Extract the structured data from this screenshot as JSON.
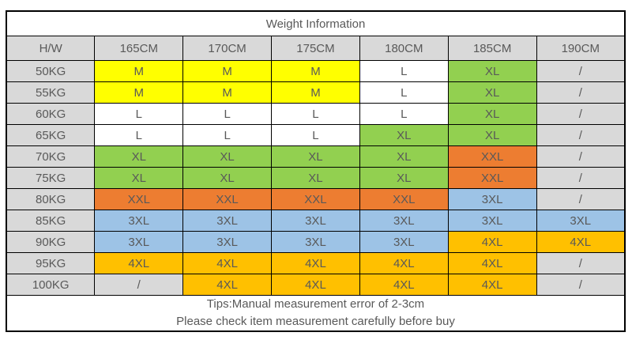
{
  "chart_data": {
    "type": "table",
    "title": "Weight Information",
    "columns": [
      "H/W",
      "165CM",
      "170CM",
      "175CM",
      "180CM",
      "185CM",
      "190CM"
    ],
    "rows": [
      {
        "weight": "50KG",
        "cells": [
          {
            "text": "M",
            "color": "yellow"
          },
          {
            "text": "M",
            "color": "yellow"
          },
          {
            "text": "M",
            "color": "yellow"
          },
          {
            "text": "L",
            "color": "white"
          },
          {
            "text": "XL",
            "color": "green"
          },
          {
            "text": "/",
            "color": "grey"
          }
        ]
      },
      {
        "weight": "55KG",
        "cells": [
          {
            "text": "M",
            "color": "yellow"
          },
          {
            "text": "M",
            "color": "yellow"
          },
          {
            "text": "M",
            "color": "yellow"
          },
          {
            "text": "L",
            "color": "white"
          },
          {
            "text": "XL",
            "color": "green"
          },
          {
            "text": "/",
            "color": "grey"
          }
        ]
      },
      {
        "weight": "60KG",
        "cells": [
          {
            "text": "L",
            "color": "white"
          },
          {
            "text": "L",
            "color": "white"
          },
          {
            "text": "L",
            "color": "white"
          },
          {
            "text": "L",
            "color": "white"
          },
          {
            "text": "XL",
            "color": "green"
          },
          {
            "text": "/",
            "color": "grey"
          }
        ]
      },
      {
        "weight": "65KG",
        "cells": [
          {
            "text": "L",
            "color": "white"
          },
          {
            "text": "L",
            "color": "white"
          },
          {
            "text": "L",
            "color": "white"
          },
          {
            "text": "XL",
            "color": "green"
          },
          {
            "text": "XL",
            "color": "green"
          },
          {
            "text": "/",
            "color": "grey"
          }
        ]
      },
      {
        "weight": "70KG",
        "cells": [
          {
            "text": "XL",
            "color": "green"
          },
          {
            "text": "XL",
            "color": "green"
          },
          {
            "text": "XL",
            "color": "green"
          },
          {
            "text": "XL",
            "color": "green"
          },
          {
            "text": "XXL",
            "color": "orange"
          },
          {
            "text": "/",
            "color": "grey"
          }
        ]
      },
      {
        "weight": "75KG",
        "cells": [
          {
            "text": "XL",
            "color": "green"
          },
          {
            "text": "XL",
            "color": "green"
          },
          {
            "text": "XL",
            "color": "green"
          },
          {
            "text": "XL",
            "color": "green"
          },
          {
            "text": "XXL",
            "color": "orange"
          },
          {
            "text": "/",
            "color": "grey"
          }
        ]
      },
      {
        "weight": "80KG",
        "cells": [
          {
            "text": "XXL",
            "color": "orange"
          },
          {
            "text": "XXL",
            "color": "orange"
          },
          {
            "text": "XXL",
            "color": "orange"
          },
          {
            "text": "XXL",
            "color": "orange"
          },
          {
            "text": "3XL",
            "color": "blue"
          },
          {
            "text": "/",
            "color": "grey"
          }
        ]
      },
      {
        "weight": "85KG",
        "cells": [
          {
            "text": "3XL",
            "color": "blue"
          },
          {
            "text": "3XL",
            "color": "blue"
          },
          {
            "text": "3XL",
            "color": "blue"
          },
          {
            "text": "3XL",
            "color": "blue"
          },
          {
            "text": "3XL",
            "color": "blue"
          },
          {
            "text": "3XL",
            "color": "blue"
          }
        ]
      },
      {
        "weight": "90KG",
        "cells": [
          {
            "text": "3XL",
            "color": "blue"
          },
          {
            "text": "3XL",
            "color": "blue"
          },
          {
            "text": "3XL",
            "color": "blue"
          },
          {
            "text": "3XL",
            "color": "blue"
          },
          {
            "text": "4XL",
            "color": "gold"
          },
          {
            "text": "4XL",
            "color": "gold"
          }
        ]
      },
      {
        "weight": "95KG",
        "cells": [
          {
            "text": "4XL",
            "color": "gold"
          },
          {
            "text": "4XL",
            "color": "gold"
          },
          {
            "text": "4XL",
            "color": "gold"
          },
          {
            "text": "4XL",
            "color": "gold"
          },
          {
            "text": "4XL",
            "color": "gold"
          },
          {
            "text": "/",
            "color": "grey"
          }
        ]
      },
      {
        "weight": "100KG",
        "cells": [
          {
            "text": "/",
            "color": "grey"
          },
          {
            "text": "4XL",
            "color": "gold"
          },
          {
            "text": "4XL",
            "color": "gold"
          },
          {
            "text": "4XL",
            "color": "gold"
          },
          {
            "text": "4XL",
            "color": "gold"
          },
          {
            "text": "/",
            "color": "grey"
          }
        ]
      }
    ],
    "notes": {
      "line1": "Tips:Manual measurement error of 2-3cm",
      "line2": "Please check item measurement carefully before buy"
    }
  },
  "colors": {
    "grey": "#d9d9d9",
    "white": "#ffffff",
    "yellow": "#ffff00",
    "green": "#92d050",
    "orange": "#ed7d31",
    "blue": "#9dc3e6",
    "gold": "#ffc000"
  }
}
